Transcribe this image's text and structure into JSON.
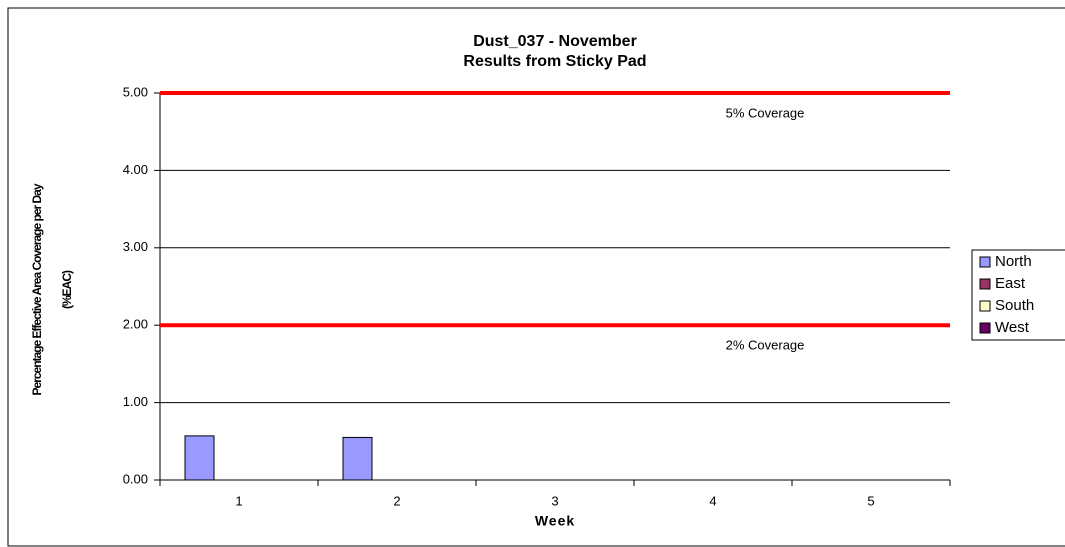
{
  "chart_data": {
    "type": "bar",
    "title": "Dust_037 - November",
    "subtitle": "Results from Sticky Pad",
    "x_label": "Week",
    "y_label": [
      "Percentage Effective Area Coverage per Day",
      "(%EAC)"
    ],
    "categories": [
      "1",
      "2",
      "3",
      "4",
      "5"
    ],
    "series": [
      {
        "name": "North",
        "color": "#9999ff",
        "values": [
          0.57,
          0.55,
          null,
          null,
          null
        ]
      },
      {
        "name": "East",
        "color": "#993366",
        "values": [
          null,
          null,
          null,
          null,
          null
        ]
      },
      {
        "name": "South",
        "color": "#ffffcc",
        "values": [
          null,
          null,
          null,
          null,
          null
        ]
      },
      {
        "name": "West",
        "color": "#660066",
        "values": [
          null,
          null,
          null,
          null,
          null
        ]
      }
    ],
    "ylim": [
      0,
      5
    ],
    "yticks": [
      {
        "value": 0,
        "label": "0.00"
      },
      {
        "value": 1,
        "label": "1.00"
      },
      {
        "value": 2,
        "label": "2.00"
      },
      {
        "value": 3,
        "label": "3.00"
      },
      {
        "value": 4,
        "label": "4.00"
      },
      {
        "value": 5,
        "label": "5.00"
      }
    ],
    "reference_lines": [
      {
        "value": 5,
        "label": "5% Coverage",
        "color": "#ff0000"
      },
      {
        "value": 2,
        "label": "2% Coverage",
        "color": "#ff0000"
      }
    ],
    "grid": true,
    "legend": "right"
  }
}
